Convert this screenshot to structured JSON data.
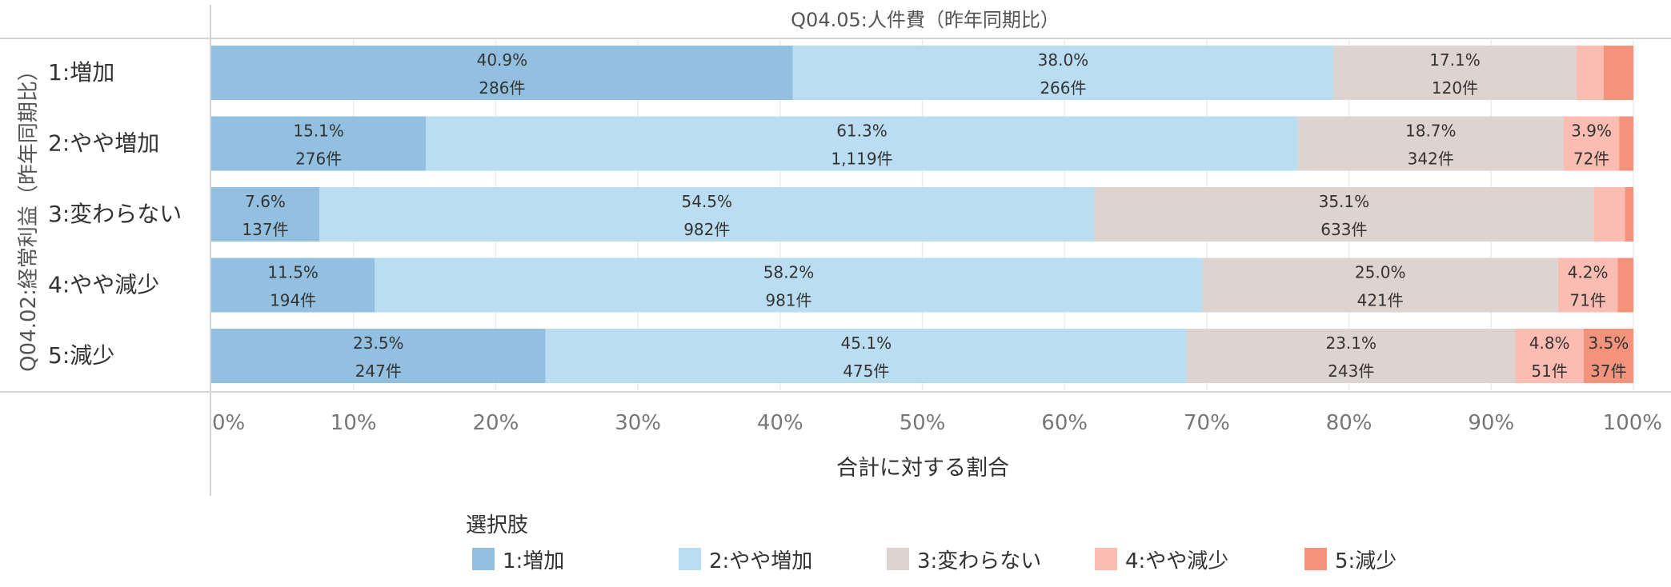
{
  "chart_data": {
    "type": "bar",
    "orientation": "horizontal",
    "stacked": true,
    "normalized": true,
    "title": "Q04.05:人件費（昨年同期比）",
    "ylabel": "Q04.02:経常利益（昨年同期比）",
    "xlabel": "合計に対する割合",
    "xlim": [
      0,
      100
    ],
    "x_ticks": [
      "0%",
      "10%",
      "20%",
      "30%",
      "40%",
      "50%",
      "60%",
      "70%",
      "80%",
      "90%",
      "100%"
    ],
    "grid": true,
    "categories": [
      "1:増加",
      "2:やや増加",
      "3:変わらない",
      "4:やや減少",
      "5:減少"
    ],
    "series": [
      {
        "name": "1:増加",
        "color": "#93C0E0",
        "values": [
          40.9,
          15.1,
          7.6,
          11.5,
          23.5
        ],
        "pct_labels": [
          "40.9%",
          "15.1%",
          "7.6%",
          "11.5%",
          "23.5%"
        ],
        "count_labels": [
          "286件",
          "276件",
          "137件",
          "194件",
          "247件"
        ]
      },
      {
        "name": "2:やや増加",
        "color": "#BADDF1",
        "values": [
          38.0,
          61.3,
          54.5,
          58.2,
          45.1
        ],
        "pct_labels": [
          "38.0%",
          "61.3%",
          "54.5%",
          "58.2%",
          "45.1%"
        ],
        "count_labels": [
          "266件",
          "1,119件",
          "982件",
          "981件",
          "475件"
        ]
      },
      {
        "name": "3:変わらない",
        "color": "#DDD3CF",
        "values": [
          17.1,
          18.7,
          35.1,
          25.0,
          23.1
        ],
        "pct_labels": [
          "17.1%",
          "18.7%",
          "35.1%",
          "25.0%",
          "23.1%"
        ],
        "count_labels": [
          "120件",
          "342件",
          "633件",
          "421件",
          "243件"
        ]
      },
      {
        "name": "4:やや減少",
        "color": "#FBBDB1",
        "values": [
          1.9,
          3.9,
          2.2,
          4.2,
          4.8
        ],
        "pct_labels": [
          "",
          "3.9%",
          "",
          "4.2%",
          "4.8%"
        ],
        "count_labels": [
          "",
          "72件",
          "",
          "71件",
          "51件"
        ]
      },
      {
        "name": "5:減少",
        "color": "#F4937C",
        "values": [
          2.1,
          1.0,
          0.6,
          1.1,
          3.5
        ],
        "pct_labels": [
          "",
          "",
          "",
          "",
          "3.5%"
        ],
        "count_labels": [
          "",
          "",
          "",
          "",
          "37件"
        ]
      }
    ],
    "legend": {
      "title": "選択肢",
      "placement": "bottom"
    }
  }
}
